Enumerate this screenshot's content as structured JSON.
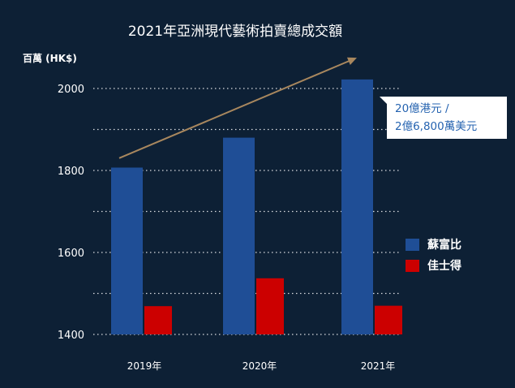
{
  "chart_data": {
    "type": "bar",
    "title": "2021年亞洲現代藝術拍賣總成交額",
    "ylabel": "百萬 (HK$)",
    "xlabel": "",
    "categories": [
      "2019年",
      "2020年",
      "2021年"
    ],
    "series": [
      {
        "name": "蘇富比",
        "color": "#1f4e96",
        "values": [
          1807,
          1880,
          2022
        ]
      },
      {
        "name": "佳士得",
        "color": "#cc0000",
        "values": [
          1469,
          1537,
          1470
        ]
      }
    ],
    "ylim": [
      1400,
      2080
    ],
    "yticks": [
      1400,
      1500,
      1600,
      1700,
      1800,
      1900,
      2000
    ],
    "ytick_labels": [
      "1400",
      "",
      "1600",
      "",
      "1800",
      "",
      "2000"
    ],
    "grid": true,
    "grid_style": "dotted",
    "legend_position": "right",
    "annotation": {
      "lines": [
        "20億港元 /",
        "2億6,800萬美元"
      ]
    },
    "trend_arrow": {
      "color": "#a8875e",
      "from_value": 1830,
      "to_value": 2075
    }
  },
  "colors": {
    "background": "#0d2035",
    "text": "#ffffff",
    "annotation_text": "#2563b0"
  }
}
